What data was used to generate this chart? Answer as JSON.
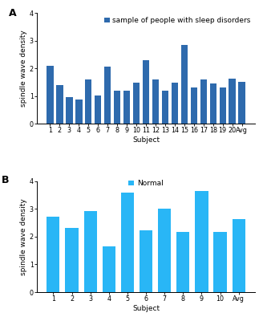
{
  "panel_a": {
    "title": "sample of people with sleep disorders",
    "bar_color": "#2e6aad",
    "xlabel": "Subject",
    "ylabel": "spindle wave density",
    "ylim": [
      0,
      4
    ],
    "yticks": [
      0,
      1,
      2,
      3,
      4
    ],
    "categories": [
      "1",
      "2",
      "3",
      "4",
      "5",
      "6",
      "7",
      "8",
      "9",
      "10",
      "11",
      "12",
      "13",
      "14",
      "15",
      "16",
      "17",
      "18",
      "19",
      "20",
      "Avg"
    ],
    "values": [
      2.1,
      1.4,
      0.95,
      0.88,
      1.6,
      1.02,
      2.05,
      1.2,
      1.2,
      1.48,
      2.3,
      1.6,
      1.2,
      1.48,
      2.85,
      1.32,
      1.6,
      1.44,
      1.3,
      1.62,
      1.52
    ]
  },
  "panel_b": {
    "title": "Normal",
    "bar_color": "#29b6f6",
    "xlabel": "Subject",
    "ylabel": "spindle wave density",
    "ylim": [
      0,
      4
    ],
    "yticks": [
      0,
      1,
      2,
      3,
      4
    ],
    "categories": [
      "1",
      "2",
      "3",
      "4",
      "5",
      "6",
      "7",
      "8",
      "9",
      "10",
      "Avg"
    ],
    "values": [
      2.72,
      2.33,
      2.92,
      1.65,
      3.58,
      2.22,
      3.0,
      2.17,
      3.65,
      2.17,
      2.65
    ]
  },
  "label_A": "A",
  "label_B": "B",
  "fig_bg": "#ffffff",
  "font_size_legend": 6.5,
  "font_size_axis_label": 6.5,
  "font_size_tick": 5.8,
  "font_size_panel": 9
}
